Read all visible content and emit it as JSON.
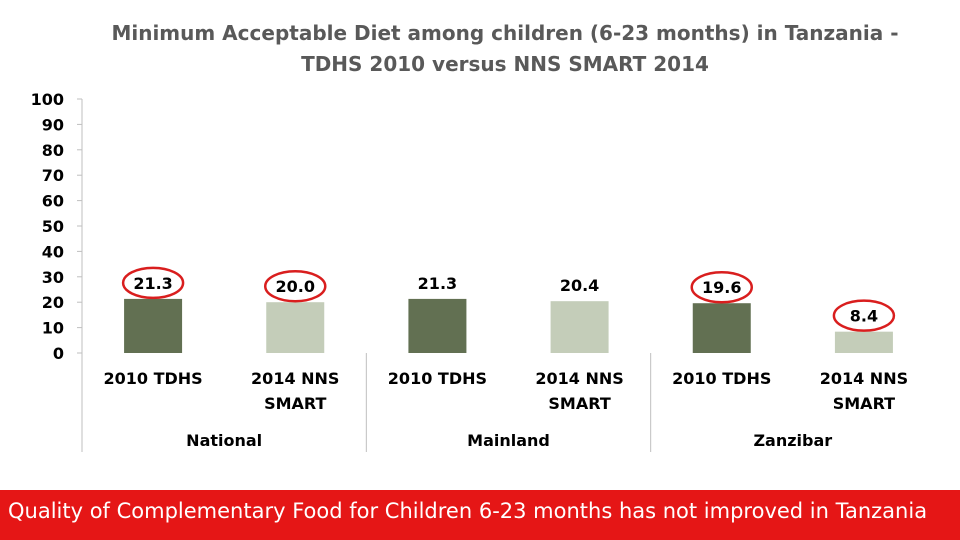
{
  "chart_data": {
    "type": "bar",
    "title_lines": [
      "Minimum Acceptable Diet among children (6-23 months) in Tanzania -",
      "TDHS 2010 versus NNS SMART 2014"
    ],
    "ylim": [
      0,
      100
    ],
    "yticks": [
      0,
      10,
      20,
      30,
      40,
      50,
      60,
      70,
      80,
      90,
      100
    ],
    "groups": [
      {
        "name": "National",
        "bars": [
          {
            "label": [
              "2010 TDHS"
            ],
            "value": 21.3,
            "value_label": "21.3",
            "circled": true,
            "color": "#627052"
          },
          {
            "label": [
              "2014 NNS",
              "SMART"
            ],
            "value": 20.0,
            "value_label": "20.0",
            "circled": true,
            "color": "#c4cdb9"
          }
        ]
      },
      {
        "name": "Mainland",
        "bars": [
          {
            "label": [
              "2010 TDHS"
            ],
            "value": 21.3,
            "value_label": "21.3",
            "circled": false,
            "color": "#627052"
          },
          {
            "label": [
              "2014 NNS",
              "SMART"
            ],
            "value": 20.4,
            "value_label": "20.4",
            "circled": false,
            "color": "#c4cdb9"
          }
        ]
      },
      {
        "name": "Zanzibar",
        "bars": [
          {
            "label": [
              "2010 TDHS"
            ],
            "value": 19.6,
            "value_label": "19.6",
            "circled": true,
            "color": "#627052"
          },
          {
            "label": [
              "2014 NNS",
              "SMART"
            ],
            "value": 8.4,
            "value_label": "8.4",
            "circled": true,
            "color": "#c4cdb9"
          }
        ]
      }
    ],
    "grid": false,
    "legend": "none"
  },
  "banner": {
    "text": "Quality of Complementary Food for Children 6-23 months has not improved in Tanzania",
    "color": "#e51616"
  },
  "colors": {
    "axis_text": "#000000",
    "title_text": "#595959",
    "circle": "#d91e1e"
  }
}
